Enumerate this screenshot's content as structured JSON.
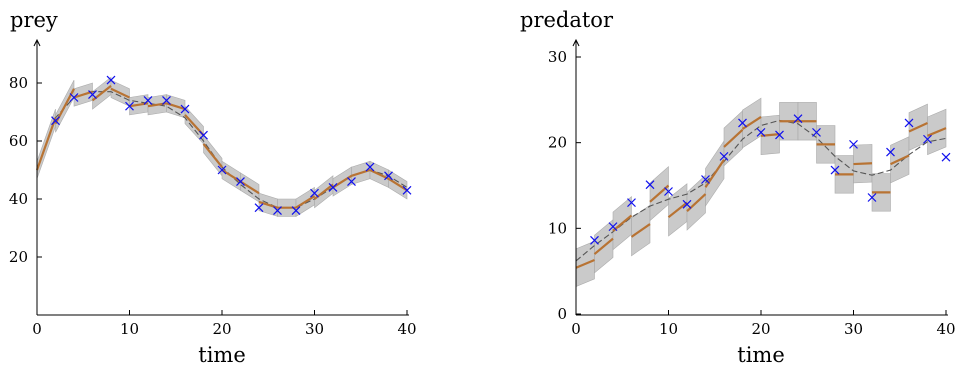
{
  "colors": {
    "band": "#c8c8c8",
    "band_edge": "#a8a8a8",
    "mean_line": "#555555",
    "segment": "#b87333",
    "marker": "#1010ee",
    "axis": "#000000"
  },
  "chart_data": [
    {
      "type": "line",
      "ylabel": "prey",
      "xlabel": "time",
      "xlim": [
        0,
        40
      ],
      "ylim": [
        0,
        90
      ],
      "xticks": [
        0,
        10,
        20,
        30,
        40
      ],
      "yticks": [
        20,
        40,
        60,
        80
      ],
      "grid": false,
      "observations": {
        "marker": "x",
        "x": [
          2,
          4,
          6,
          8,
          10,
          12,
          14,
          16,
          18,
          20,
          22,
          24,
          26,
          28,
          30,
          32,
          34,
          36,
          38,
          40
        ],
        "y": [
          67,
          75,
          76,
          81,
          72,
          74,
          74,
          71,
          62,
          50,
          46,
          37,
          36,
          36,
          42,
          44,
          46,
          51,
          48,
          43
        ]
      },
      "mean": {
        "x": [
          0,
          2,
          4,
          6,
          8,
          10,
          12,
          14,
          16,
          18,
          20,
          22,
          24,
          26,
          28,
          30,
          32,
          34,
          36,
          38,
          40
        ],
        "y": [
          50,
          68,
          75,
          77,
          77,
          74,
          73,
          72,
          68,
          60,
          51,
          45,
          40,
          37,
          37,
          40,
          44,
          48,
          50,
          48,
          44
        ]
      },
      "band_halfwidth": [
        2,
        4,
        4,
        4,
        4,
        4,
        4,
        4,
        4,
        4,
        4,
        4,
        4,
        4,
        4,
        4,
        4,
        4,
        4,
        4,
        4
      ],
      "segments": [
        {
          "x": [
            0,
            2
          ],
          "y": [
            50,
            68
          ]
        },
        {
          "x": [
            2,
            4
          ],
          "y": [
            66,
            78
          ]
        },
        {
          "x": [
            4,
            6
          ],
          "y": [
            75,
            77
          ]
        },
        {
          "x": [
            6,
            8
          ],
          "y": [
            74,
            79
          ]
        },
        {
          "x": [
            8,
            10
          ],
          "y": [
            78,
            75
          ]
        },
        {
          "x": [
            10,
            12
          ],
          "y": [
            72,
            73
          ]
        },
        {
          "x": [
            12,
            14
          ],
          "y": [
            72,
            73
          ]
        },
        {
          "x": [
            14,
            16
          ],
          "y": [
            73,
            71
          ]
        },
        {
          "x": [
            16,
            18
          ],
          "y": [
            69,
            62
          ]
        },
        {
          "x": [
            18,
            20
          ],
          "y": [
            59,
            51
          ]
        },
        {
          "x": [
            20,
            22
          ],
          "y": [
            50,
            46
          ]
        },
        {
          "x": [
            22,
            24
          ],
          "y": [
            46,
            42
          ]
        },
        {
          "x": [
            24,
            26
          ],
          "y": [
            39,
            37
          ]
        },
        {
          "x": [
            26,
            28
          ],
          "y": [
            37,
            37
          ]
        },
        {
          "x": [
            28,
            30
          ],
          "y": [
            37,
            41
          ]
        },
        {
          "x": [
            30,
            32
          ],
          "y": [
            40,
            45
          ]
        },
        {
          "x": [
            32,
            34
          ],
          "y": [
            44,
            48
          ]
        },
        {
          "x": [
            34,
            36
          ],
          "y": [
            48,
            50
          ]
        },
        {
          "x": [
            36,
            38
          ],
          "y": [
            50,
            47
          ]
        },
        {
          "x": [
            38,
            40
          ],
          "y": [
            47,
            43
          ]
        }
      ]
    },
    {
      "type": "line",
      "ylabel": "predator",
      "xlabel": "time",
      "xlim": [
        0,
        40
      ],
      "ylim": [
        0,
        31
      ],
      "xticks": [
        0,
        10,
        20,
        30,
        40
      ],
      "yticks": [
        0,
        10,
        20,
        30
      ],
      "grid": false,
      "observations": {
        "marker": "x",
        "x": [
          2,
          4,
          6,
          8,
          10,
          12,
          14,
          16,
          18,
          20,
          22,
          24,
          26,
          28,
          30,
          32,
          34,
          36,
          38,
          40
        ],
        "y": [
          8.6,
          10.2,
          13.0,
          15.1,
          14.3,
          12.8,
          15.7,
          18.4,
          22.3,
          21.2,
          20.9,
          22.8,
          21.2,
          16.8,
          19.8,
          13.6,
          18.9,
          22.3,
          20.4,
          18.3
        ]
      },
      "mean": {
        "x": [
          0,
          2,
          4,
          6,
          8,
          10,
          12,
          14,
          16,
          18,
          20,
          22,
          24,
          26,
          28,
          30,
          32,
          34,
          36,
          38,
          40
        ],
        "y": [
          6.2,
          8.0,
          9.6,
          11.3,
          12.6,
          13.4,
          14.0,
          15.3,
          17.8,
          20.4,
          22.0,
          22.6,
          22.2,
          20.6,
          18.4,
          16.7,
          16.2,
          16.8,
          18.6,
          20.1,
          20.5
        ]
      },
      "band_halfwidth": [
        2,
        2,
        2,
        2,
        2,
        2,
        2,
        2,
        2,
        2,
        2,
        2,
        2,
        2,
        2,
        2,
        2,
        2,
        2,
        2,
        2
      ],
      "segments": [
        {
          "x": [
            0,
            2
          ],
          "y": [
            5.4,
            6.3
          ]
        },
        {
          "x": [
            2,
            4
          ],
          "y": [
            7.0,
            8.8
          ]
        },
        {
          "x": [
            4,
            6
          ],
          "y": [
            9.7,
            11.5
          ]
        },
        {
          "x": [
            6,
            8
          ],
          "y": [
            9.0,
            10.5
          ]
        },
        {
          "x": [
            8,
            10
          ],
          "y": [
            13.1,
            15.0
          ]
        },
        {
          "x": [
            10,
            12
          ],
          "y": [
            11.3,
            13.0
          ]
        },
        {
          "x": [
            12,
            14
          ],
          "y": [
            12.0,
            14.0
          ]
        },
        {
          "x": [
            14,
            16
          ],
          "y": [
            14.8,
            18.0
          ]
        },
        {
          "x": [
            16,
            18
          ],
          "y": [
            19.5,
            21.5
          ]
        },
        {
          "x": [
            18,
            20
          ],
          "y": [
            21.6,
            23.0
          ]
        },
        {
          "x": [
            20,
            22
          ],
          "y": [
            20.8,
            21.0
          ]
        },
        {
          "x": [
            22,
            24
          ],
          "y": [
            22.5,
            22.5
          ]
        },
        {
          "x": [
            24,
            26
          ],
          "y": [
            22.5,
            22.5
          ]
        },
        {
          "x": [
            26,
            28
          ],
          "y": [
            19.8,
            19.8
          ]
        },
        {
          "x": [
            28,
            30
          ],
          "y": [
            16.3,
            16.3
          ]
        },
        {
          "x": [
            30,
            32
          ],
          "y": [
            17.5,
            17.6
          ]
        },
        {
          "x": [
            32,
            34
          ],
          "y": [
            14.2,
            14.2
          ]
        },
        {
          "x": [
            34,
            36
          ],
          "y": [
            17.5,
            18.5
          ]
        },
        {
          "x": [
            36,
            38
          ],
          "y": [
            21.3,
            22.3
          ]
        },
        {
          "x": [
            38,
            40
          ],
          "y": [
            20.8,
            21.7
          ]
        }
      ]
    }
  ]
}
